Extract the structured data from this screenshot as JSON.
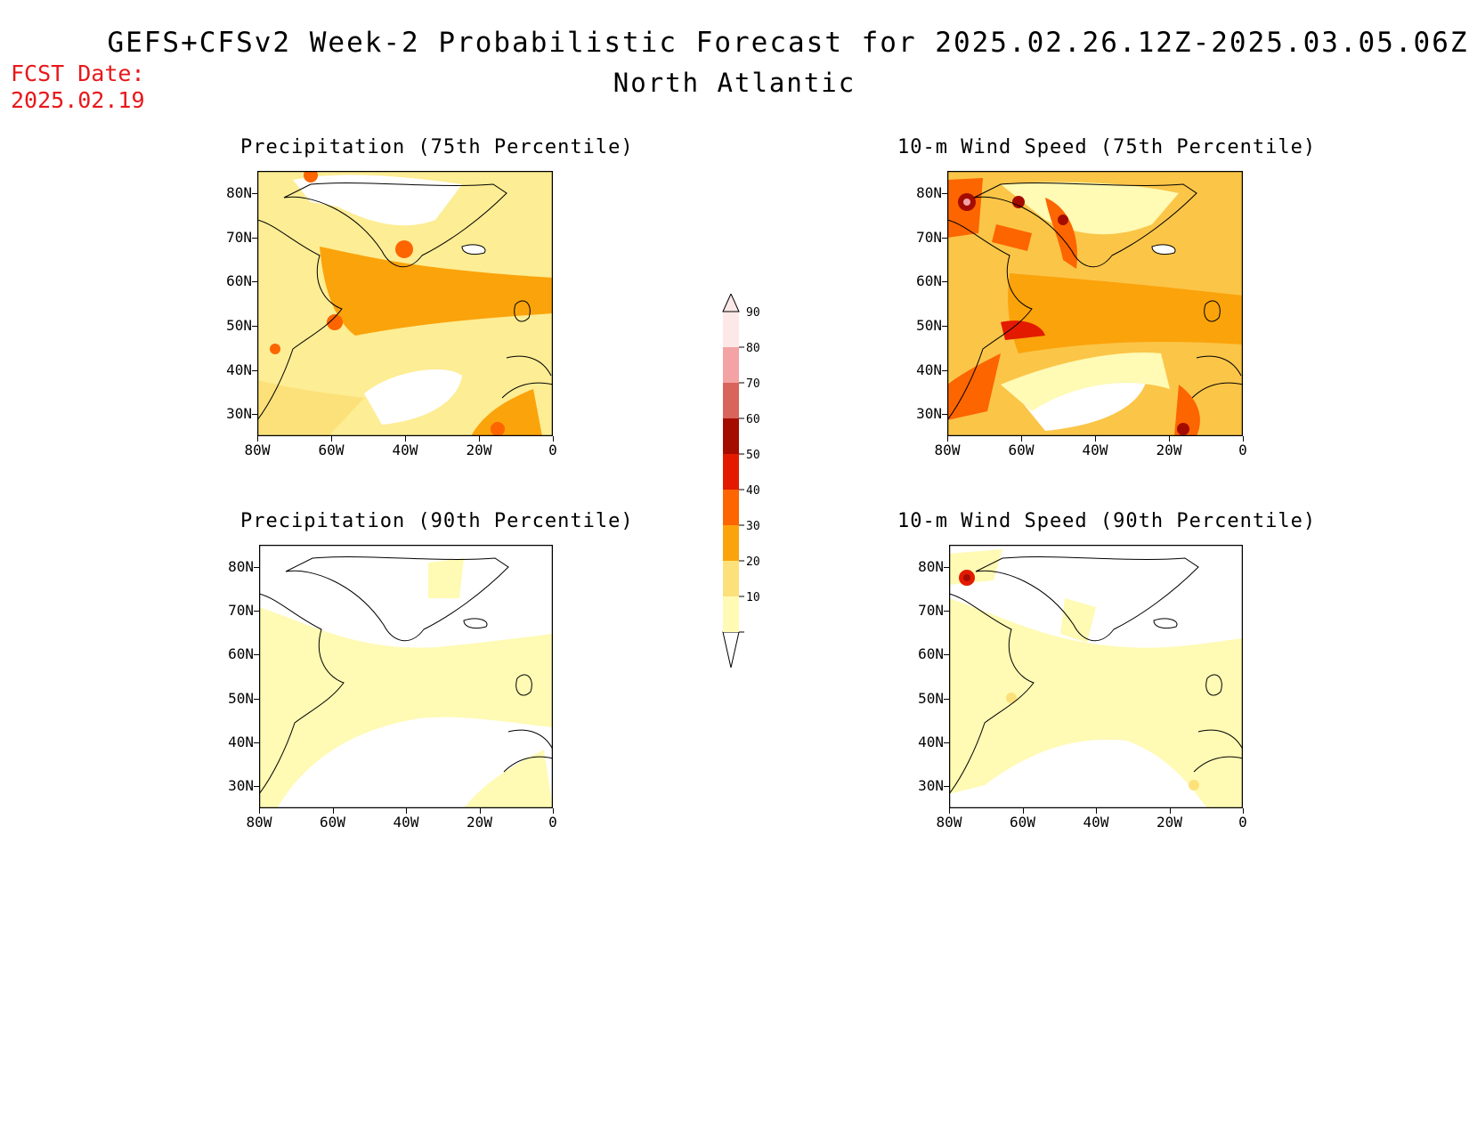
{
  "header": {
    "title": "GEFS+CFSv2 Week-2 Probabilistic Forecast for 2025.02.26.12Z-2025.03.05.06Z",
    "subtitle": "North Atlantic",
    "fcst_label": "FCST Date:",
    "fcst_date": "2025.02.19"
  },
  "panels": [
    {
      "id": "precip75",
      "title": "Precipitation (75th Percentile)"
    },
    {
      "id": "wind75",
      "title": "10-m Wind Speed (75th Percentile)"
    },
    {
      "id": "precip90",
      "title": "Precipitation (90th Percentile)"
    },
    {
      "id": "wind90",
      "title": "10-m Wind Speed (90th Percentile)"
    }
  ],
  "axes": {
    "lat_labels": [
      "80N",
      "70N",
      "60N",
      "50N",
      "40N",
      "30N"
    ],
    "lon_labels": [
      "80W",
      "60W",
      "40W",
      "20W",
      "0"
    ],
    "lat_range": [
      25,
      85
    ],
    "lon_range": [
      -80,
      0
    ]
  },
  "colorbar": {
    "levels": [
      "10",
      "20",
      "30",
      "40",
      "50",
      "60",
      "70",
      "80",
      "90"
    ],
    "colors": [
      "#fffab4",
      "#fce17a",
      "#fba30b",
      "#fc6500",
      "#e31a00",
      "#a50c00",
      "#d8645c",
      "#f3a3a3",
      "#fde8e8"
    ]
  }
}
